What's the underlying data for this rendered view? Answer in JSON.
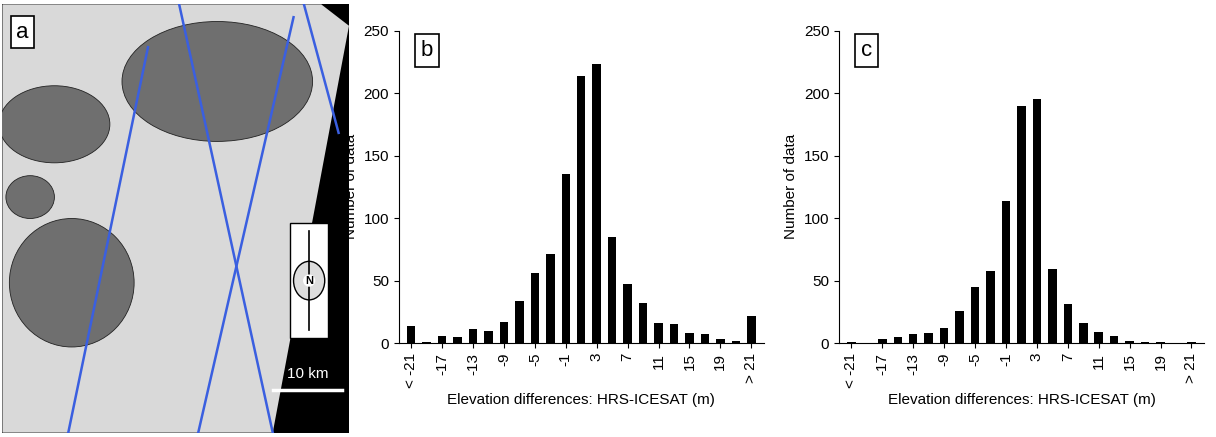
{
  "chart_data": [
    {
      "type": "image",
      "title": "a",
      "annotations": [
        "N",
        "10 km"
      ]
    },
    {
      "type": "bar",
      "title": "b",
      "x_label": "Elevation differences: HRS-ICESAT (m)",
      "y_label": "Number of data",
      "categories": [
        "< -21",
        null,
        "-17",
        null,
        "-13",
        null,
        "-9",
        null,
        "-5",
        null,
        "-1",
        null,
        "3",
        null,
        "7",
        null,
        "11",
        null,
        "15",
        null,
        "19",
        null,
        "> 21"
      ],
      "values": [
        14,
        1,
        6,
        5,
        11,
        10,
        17,
        34,
        56,
        71,
        135,
        214,
        223,
        85,
        47,
        32,
        16,
        15,
        8,
        7,
        3,
        2,
        22
      ],
      "color": "#000000",
      "ylim": [
        0,
        250
      ],
      "yticks": [
        0,
        50,
        100,
        150,
        200,
        250
      ]
    },
    {
      "type": "bar",
      "title": "c",
      "x_label": "Elevation differences: HRS-ICESAT (m)",
      "y_label": "Number of data",
      "categories": [
        "< -21",
        null,
        "-17",
        null,
        "-13",
        null,
        "-9",
        null,
        "-5",
        null,
        "-1",
        null,
        "3",
        null,
        "7",
        null,
        "11",
        null,
        "15",
        null,
        "19",
        null,
        "> 21"
      ],
      "values": [
        1,
        0,
        3,
        5,
        7,
        8,
        12,
        26,
        45,
        58,
        114,
        190,
        195,
        59,
        31,
        16,
        9,
        6,
        2,
        1,
        1,
        0,
        1
      ],
      "color": "#000000",
      "ylim": [
        0,
        250
      ],
      "yticks": [
        0,
        50,
        100,
        150,
        200,
        250
      ]
    }
  ]
}
